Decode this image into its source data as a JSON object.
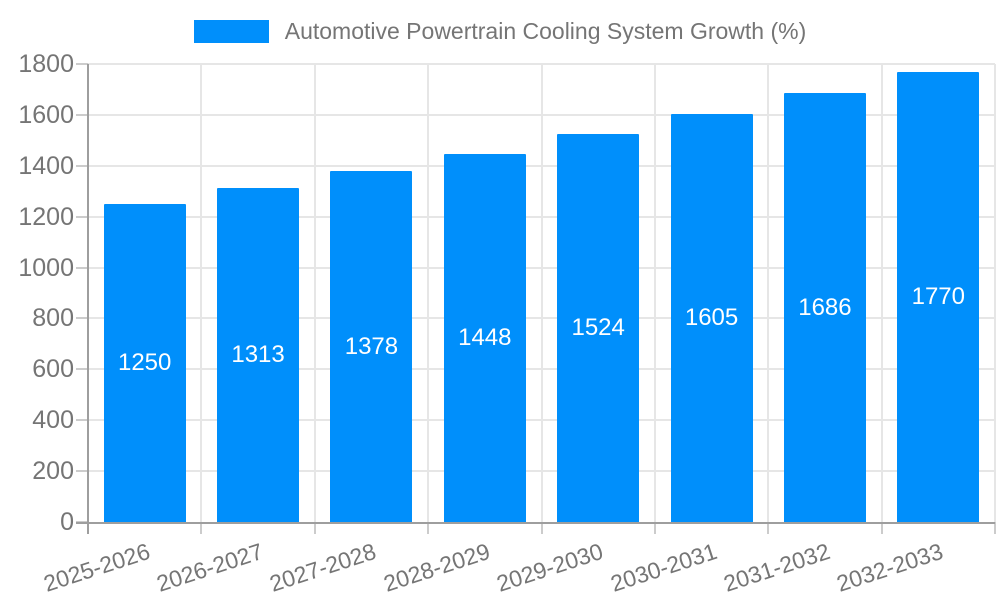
{
  "colors": {
    "bar": "#008FFB",
    "axis_text": "#757575",
    "axis_line": "#9e9e9e",
    "gridline": "#e6e6e6",
    "tick": "#cccccc",
    "value_label": "#ffffff",
    "background": "#ffffff"
  },
  "legend": {
    "label": "Automotive Powertrain Cooling System Growth (%)"
  },
  "chart_data": {
    "type": "bar",
    "title": "Automotive Powertrain Cooling System Growth (%)",
    "categories": [
      "2025-2026",
      "2026-2027",
      "2027-2028",
      "2028-2029",
      "2029-2030",
      "2030-2031",
      "2031-2032",
      "2032-2033"
    ],
    "values": [
      1250,
      1313,
      1378,
      1448,
      1524,
      1605,
      1686,
      1770
    ],
    "xlabel": "",
    "ylabel": "",
    "ylim": [
      0,
      1800
    ],
    "ytick_step": 200,
    "ytick_labels": [
      "0",
      "200",
      "400",
      "600",
      "800",
      "1000",
      "1200",
      "1400",
      "1600",
      "1800"
    ],
    "grid": true,
    "legend_position": "top-center",
    "value_label_position": "middle-of-bar",
    "x_label_rotation_deg": -18
  }
}
